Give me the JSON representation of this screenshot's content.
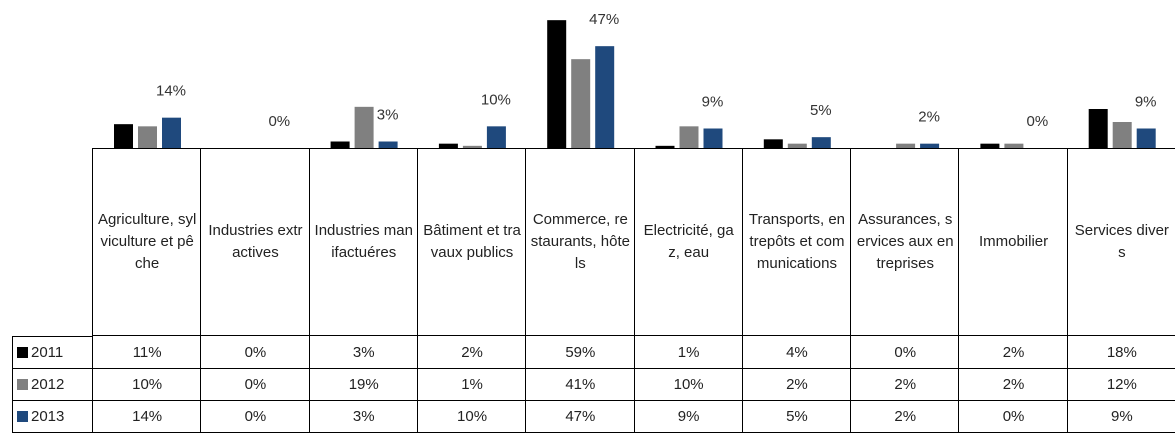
{
  "chart_data": {
    "type": "bar",
    "categories": [
      "Agriculture, sylviculture et pêche",
      "Industries extractives",
      "Industries manifactuéres",
      "Bâtiment et travaux publics",
      "Commerce, restaurants, hôtels",
      "Electricité, gaz, eau",
      "Transports, entrepôts et communications",
      "Assurances, services aux entreprises",
      "Immobilier",
      "Services divers"
    ],
    "series": [
      {
        "name": "2011",
        "color": "#000000",
        "values": [
          11,
          0,
          3,
          2,
          59,
          1,
          4,
          0,
          2,
          18
        ],
        "value_labels": [
          "11%",
          "0%",
          "3%",
          "2%",
          "59%",
          "1%",
          "4%",
          "0%",
          "2%",
          "18%"
        ]
      },
      {
        "name": "2012",
        "color": "#808080",
        "values": [
          10,
          0,
          19,
          1,
          41,
          10,
          2,
          2,
          2,
          12
        ],
        "value_labels": [
          "10%",
          "0%",
          "19%",
          "1%",
          "41%",
          "10%",
          "2%",
          "2%",
          "2%",
          "12%"
        ]
      },
      {
        "name": "2013",
        "color": "#1f497d",
        "values": [
          14,
          0,
          3,
          10,
          47,
          9,
          5,
          2,
          0,
          9
        ],
        "value_labels": [
          "14%",
          "0%",
          "3%",
          "10%",
          "47%",
          "9%",
          "5%",
          "2%",
          "0%",
          "9%"
        ]
      }
    ],
    "ylim": [
      0,
      60
    ]
  }
}
